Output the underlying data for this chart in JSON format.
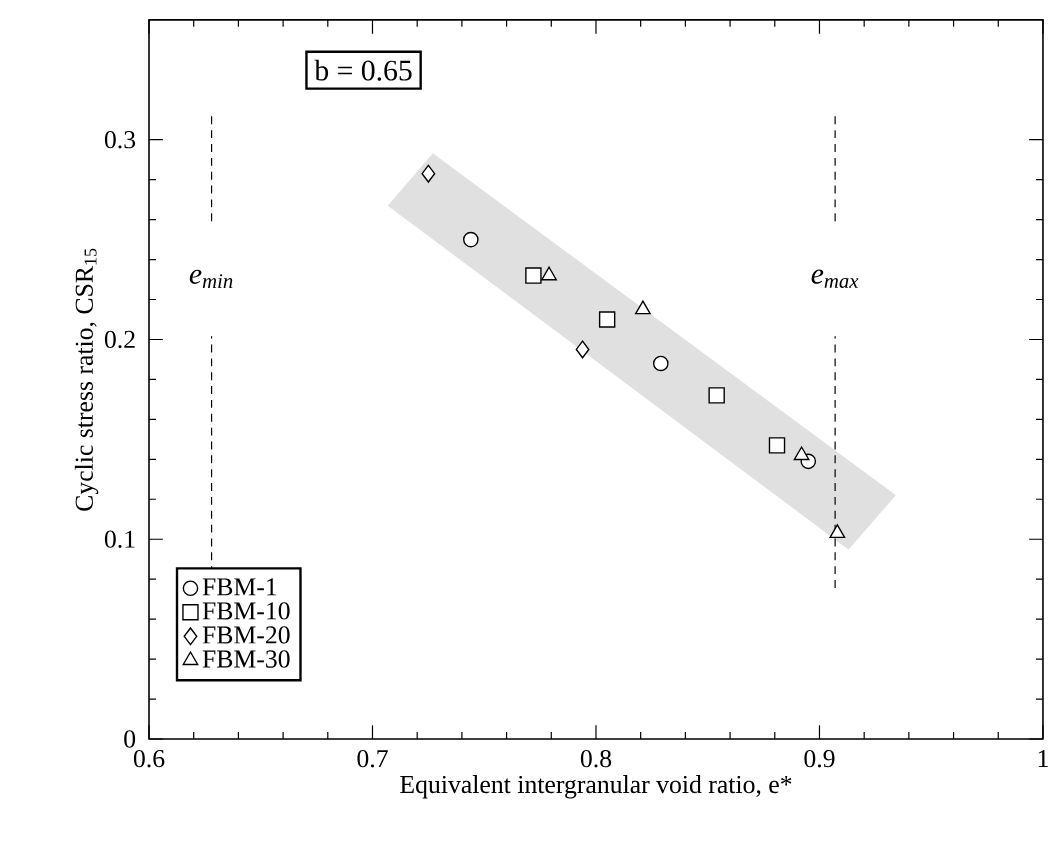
{
  "chart_data": {
    "type": "scatter",
    "xlabel": "Equivalent intergranular void ratio, e*",
    "ylabel": "Cyclic stress ratio, CSR$_{15}$",
    "xlim": [
      0.6,
      1.0
    ],
    "ylim": [
      0,
      0.36
    ],
    "xticks": [
      0.6,
      0.7,
      0.8,
      0.9,
      {
        "value": 1.0,
        "label": "1"
      }
    ],
    "yticks": [
      0,
      0.1,
      0.2,
      0.3
    ],
    "legend": "bottom left",
    "grid": false,
    "annotations": [
      "b = 0.65"
    ],
    "ref_lines": [
      {
        "axis": "x",
        "value": 0.628,
        "label": "e$_{min}$",
        "line_style": "dashed",
        "color": "#000000"
      },
      {
        "axis": "x",
        "value": 0.907,
        "label": "e$_{max}$",
        "line_style": "dashed",
        "color": "#000000"
      }
    ],
    "series": [
      {
        "type": "area",
        "color": "#e0e0e0",
        "x": [
          0.707,
          0.727,
          0.934,
          0.913
        ],
        "values": [
          0.267,
          0.293,
          0.122,
          0.095
        ]
      },
      {
        "name": "FBM-1",
        "marker": "circle",
        "color": "#000000",
        "x": [
          0.744,
          0.829,
          0.895
        ],
        "values": [
          0.25,
          0.188,
          0.139
        ]
      },
      {
        "name": "FBM-10",
        "marker": "square",
        "color": "#000000",
        "x": [
          0.772,
          0.805,
          0.854,
          0.881
        ],
        "values": [
          0.232,
          0.21,
          0.172,
          0.147
        ]
      },
      {
        "name": "FBM-20",
        "marker": "diamond",
        "color": "#000000",
        "x": [
          0.725,
          0.794
        ],
        "values": [
          0.283,
          0.195
        ]
      },
      {
        "name": "FBM-30",
        "marker": "triangle",
        "color": "#000000",
        "x": [
          0.779,
          0.821,
          0.892,
          0.908
        ],
        "values": [
          0.232,
          0.215,
          0.142,
          0.103
        ]
      }
    ]
  }
}
